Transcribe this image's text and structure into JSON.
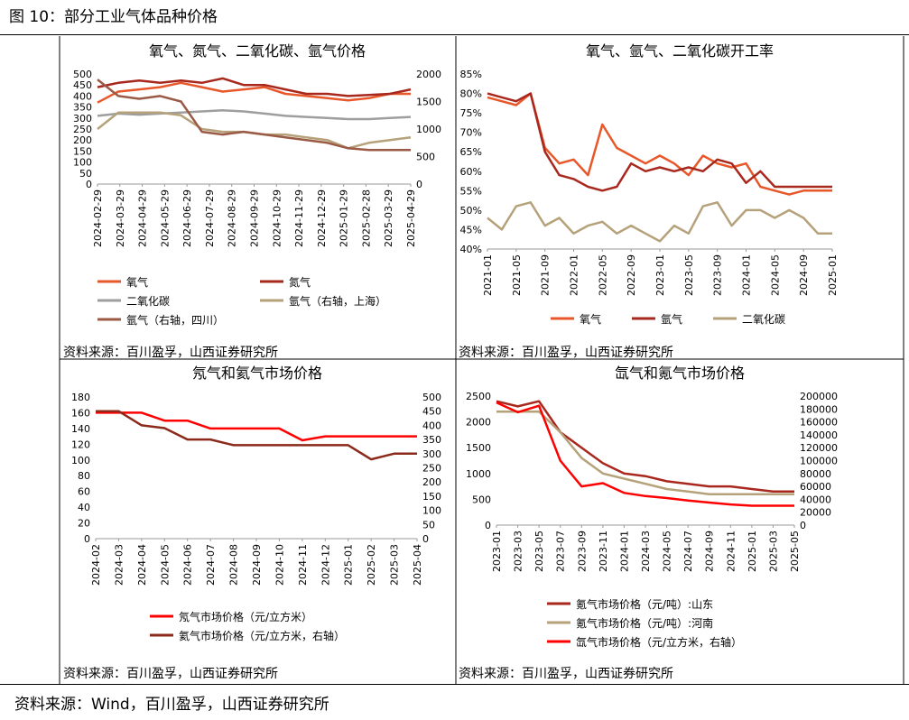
{
  "figure_title": "图 10：部分工业气体品种价格",
  "footer_source": "资料来源：Wind，百川盈孚，山西证券研究所",
  "panel_source": "资料来源：百川盈孚，山西证券研究所",
  "colors": {
    "orange": "#E8572A",
    "darkred": "#A8281E",
    "gray": "#9E9E9E",
    "khaki": "#B5A27A",
    "brown": "#9B5A45",
    "red": "#FF0000",
    "darkbrown": "#8B2A1A"
  },
  "chart_data": [
    {
      "type": "line",
      "title": "氧气、氮气、二氧化碳、氩气价格",
      "x_ticks": [
        "2024-02-29",
        "2024-03-29",
        "2024-04-29",
        "2024-05-29",
        "2024-06-29",
        "2024-07-29",
        "2024-08-29",
        "2024-09-29",
        "2024-10-29",
        "2024-11-29",
        "2024-12-29",
        "2025-01-29",
        "2025-02-28",
        "2025-03-29",
        "2025-04-29"
      ],
      "y_left": {
        "ticks": [
          "0",
          "50",
          "100",
          "150",
          "200",
          "250",
          "300",
          "350",
          "400",
          "450",
          "500"
        ],
        "range": [
          0,
          500
        ]
      },
      "y_right": {
        "ticks": [
          "0",
          "500",
          "1000",
          "1500",
          "2000"
        ],
        "range": [
          0,
          2000
        ]
      },
      "legend": [
        "氧气",
        "氮气",
        "二氧化碳",
        "氩气（右轴，上海）",
        "氩气（右轴，四川）"
      ],
      "series": [
        {
          "name": "氧气",
          "axis": "left",
          "color": "#E8572A",
          "values": [
            370,
            420,
            430,
            440,
            460,
            440,
            420,
            430,
            440,
            410,
            400,
            390,
            380,
            390,
            410,
            410
          ]
        },
        {
          "name": "氮气",
          "axis": "left",
          "color": "#A8281E",
          "values": [
            440,
            460,
            470,
            460,
            470,
            460,
            480,
            450,
            450,
            430,
            410,
            410,
            400,
            405,
            410,
            430
          ]
        },
        {
          "name": "二氧化碳",
          "axis": "left",
          "color": "#9E9E9E",
          "values": [
            310,
            320,
            315,
            320,
            325,
            330,
            335,
            330,
            320,
            310,
            305,
            300,
            295,
            295,
            300,
            305
          ]
        },
        {
          "name": "氩气（右轴，上海）",
          "axis": "right",
          "color": "#B5A27A",
          "values": [
            1000,
            1300,
            1300,
            1300,
            1250,
            1000,
            950,
            950,
            900,
            900,
            850,
            800,
            650,
            750,
            800,
            850
          ]
        },
        {
          "name": "氩气（右轴，四川）",
          "axis": "right",
          "color": "#9B5A45",
          "values": [
            1900,
            1600,
            1550,
            1600,
            1500,
            950,
            900,
            950,
            900,
            850,
            800,
            750,
            650,
            620,
            620,
            620
          ]
        }
      ]
    },
    {
      "type": "line",
      "title": "氧气、氩气、二氧化碳开工率",
      "x_ticks": [
        "2021-01",
        "2021-05",
        "2021-09",
        "2022-01",
        "2022-05",
        "2022-09",
        "2023-01",
        "2023-05",
        "2023-09",
        "2024-01",
        "2024-05",
        "2024-09",
        "2025-01"
      ],
      "y_ticks": [
        "40%",
        "45%",
        "50%",
        "55%",
        "60%",
        "65%",
        "70%",
        "75%",
        "80%",
        "85%"
      ],
      "y_range": [
        40,
        85
      ],
      "legend": [
        "氧气",
        "氩气",
        "二氧化碳"
      ],
      "series": [
        {
          "name": "氧气",
          "color": "#E8572A",
          "values": [
            79,
            78,
            77,
            80,
            66,
            62,
            63,
            59,
            72,
            66,
            64,
            62,
            64,
            62,
            59,
            64,
            62,
            61,
            62,
            56,
            55,
            54,
            55,
            55,
            55
          ]
        },
        {
          "name": "氩气",
          "color": "#A8281E",
          "values": [
            80,
            79,
            78,
            80,
            65,
            59,
            58,
            56,
            55,
            56,
            62,
            60,
            61,
            60,
            61,
            60,
            63,
            62,
            57,
            60,
            56,
            56,
            56,
            56,
            56
          ]
        },
        {
          "name": "二氧化碳",
          "color": "#B5A27A",
          "values": [
            48,
            45,
            51,
            52,
            46,
            48,
            44,
            46,
            47,
            44,
            46,
            44,
            42,
            46,
            44,
            51,
            52,
            46,
            50,
            50,
            48,
            50,
            48,
            44,
            44
          ]
        }
      ]
    },
    {
      "type": "line",
      "title": "氖气和氦气市场价格",
      "x_ticks": [
        "2024-02",
        "2024-03",
        "2024-04",
        "2024-05",
        "2024-06",
        "2024-07",
        "2024-08",
        "2024-09",
        "2024-10",
        "2024-11",
        "2024-12",
        "2025-01",
        "2025-02",
        "2025-03",
        "2025-04"
      ],
      "y_left": {
        "ticks": [
          "0",
          "20",
          "40",
          "60",
          "80",
          "100",
          "120",
          "140",
          "160",
          "180"
        ],
        "range": [
          0,
          180
        ]
      },
      "y_right": {
        "ticks": [
          "0",
          "50",
          "100",
          "150",
          "200",
          "250",
          "300",
          "350",
          "400",
          "450",
          "500"
        ],
        "range": [
          0,
          500
        ]
      },
      "legend": [
        "氖气市场价格（元/立方米）",
        "氦气市场价格（元/立方米，右轴）"
      ],
      "series": [
        {
          "name": "氖气市场价格（元/立方米）",
          "axis": "left",
          "color": "#FF0000",
          "values": [
            160,
            160,
            160,
            150,
            150,
            140,
            140,
            140,
            140,
            125,
            130,
            130,
            130,
            130,
            130
          ]
        },
        {
          "name": "氦气市场价格（元/立方米，右轴）",
          "axis": "right",
          "color": "#8B2A1A",
          "values": [
            450,
            450,
            400,
            390,
            350,
            350,
            330,
            330,
            330,
            330,
            330,
            330,
            280,
            300,
            300
          ]
        }
      ]
    },
    {
      "type": "line",
      "title": "氙气和氪气市场价格",
      "x_ticks": [
        "2023-01",
        "2023-03",
        "2023-05",
        "2023-07",
        "2023-09",
        "2023-11",
        "2024-01",
        "2024-03",
        "2024-05",
        "2024-07",
        "2024-09",
        "2024-11",
        "2025-01",
        "2025-03",
        "2025-05"
      ],
      "y_left": {
        "ticks": [
          "0",
          "500",
          "1000",
          "1500",
          "2000",
          "2500"
        ],
        "range": [
          0,
          2500
        ]
      },
      "y_right": {
        "ticks": [
          "0",
          "20000",
          "40000",
          "60000",
          "80000",
          "100000",
          "120000",
          "140000",
          "160000",
          "180000",
          "200000"
        ],
        "range": [
          0,
          200000
        ]
      },
      "legend": [
        "氪气市场价格（元/吨）:山东",
        "氪气市场价格（元/吨）:河南",
        "氙气市场价格（元/立方米，右轴）"
      ],
      "series": [
        {
          "name": "氪气市场价格（元/吨）:山东",
          "axis": "left",
          "color": "#A8281E",
          "values": [
            2400,
            2300,
            2400,
            1800,
            1500,
            1200,
            1000,
            950,
            850,
            800,
            750,
            750,
            700,
            650,
            650
          ]
        },
        {
          "name": "氪气市场价格（元/吨）:河南",
          "axis": "left",
          "color": "#B5A27A",
          "values": [
            2200,
            2200,
            2200,
            1800,
            1300,
            1000,
            900,
            800,
            700,
            650,
            600,
            600,
            600,
            600,
            600
          ]
        },
        {
          "name": "氙气市场价格（元/立方米，右轴）",
          "axis": "right",
          "color": "#FF0000",
          "values": [
            190000,
            175000,
            185000,
            100000,
            60000,
            65000,
            50000,
            45000,
            42000,
            38000,
            35000,
            32000,
            30000,
            30000,
            30000
          ]
        }
      ]
    }
  ]
}
